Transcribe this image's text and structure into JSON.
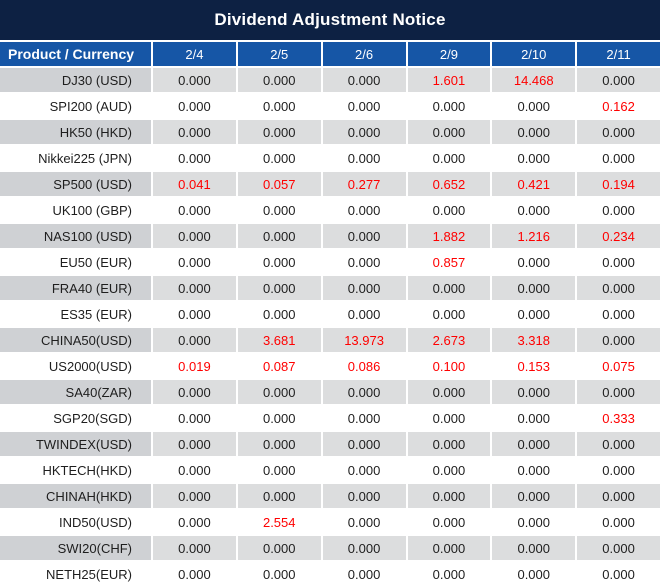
{
  "title": "Dividend Adjustment Notice",
  "colors": {
    "title_bg": "#0d2143",
    "header_bg": "#1656a6",
    "header_text": "#ffffff",
    "row_gray_product": "#cfd1d4",
    "row_gray_cell": "#dcddde",
    "row_white": "#ffffff",
    "value_red": "#ff0000",
    "text_dark": "#1e1e1e"
  },
  "table": {
    "product_header": "Product / Currency",
    "date_headers": [
      "2/4",
      "2/5",
      "2/6",
      "2/9",
      "2/10",
      "2/11"
    ],
    "rows": [
      {
        "product": "DJ30 (USD)",
        "values": [
          "0.000",
          "0.000",
          "0.000",
          "1.601",
          "14.468",
          "0.000"
        ],
        "red": [
          false,
          false,
          false,
          true,
          true,
          false
        ]
      },
      {
        "product": "SPI200 (AUD)",
        "values": [
          "0.000",
          "0.000",
          "0.000",
          "0.000",
          "0.000",
          "0.162"
        ],
        "red": [
          false,
          false,
          false,
          false,
          false,
          true
        ]
      },
      {
        "product": "HK50 (HKD)",
        "values": [
          "0.000",
          "0.000",
          "0.000",
          "0.000",
          "0.000",
          "0.000"
        ],
        "red": [
          false,
          false,
          false,
          false,
          false,
          false
        ]
      },
      {
        "product": "Nikkei225 (JPN)",
        "values": [
          "0.000",
          "0.000",
          "0.000",
          "0.000",
          "0.000",
          "0.000"
        ],
        "red": [
          false,
          false,
          false,
          false,
          false,
          false
        ]
      },
      {
        "product": "SP500 (USD)",
        "values": [
          "0.041",
          "0.057",
          "0.277",
          "0.652",
          "0.421",
          "0.194"
        ],
        "red": [
          true,
          true,
          true,
          true,
          true,
          true
        ]
      },
      {
        "product": "UK100 (GBP)",
        "values": [
          "0.000",
          "0.000",
          "0.000",
          "0.000",
          "0.000",
          "0.000"
        ],
        "red": [
          false,
          false,
          false,
          false,
          false,
          false
        ]
      },
      {
        "product": "NAS100 (USD)",
        "values": [
          "0.000",
          "0.000",
          "0.000",
          "1.882",
          "1.216",
          "0.234"
        ],
        "red": [
          false,
          false,
          false,
          true,
          true,
          true
        ]
      },
      {
        "product": "EU50 (EUR)",
        "values": [
          "0.000",
          "0.000",
          "0.000",
          "0.857",
          "0.000",
          "0.000"
        ],
        "red": [
          false,
          false,
          false,
          true,
          false,
          false
        ]
      },
      {
        "product": "FRA40 (EUR)",
        "values": [
          "0.000",
          "0.000",
          "0.000",
          "0.000",
          "0.000",
          "0.000"
        ],
        "red": [
          false,
          false,
          false,
          false,
          false,
          false
        ]
      },
      {
        "product": "ES35 (EUR)",
        "values": [
          "0.000",
          "0.000",
          "0.000",
          "0.000",
          "0.000",
          "0.000"
        ],
        "red": [
          false,
          false,
          false,
          false,
          false,
          false
        ]
      },
      {
        "product": "CHINA50(USD)",
        "values": [
          "0.000",
          "3.681",
          "13.973",
          "2.673",
          "3.318",
          "0.000"
        ],
        "red": [
          false,
          true,
          true,
          true,
          true,
          false
        ]
      },
      {
        "product": "US2000(USD)",
        "values": [
          "0.019",
          "0.087",
          "0.086",
          "0.100",
          "0.153",
          "0.075"
        ],
        "red": [
          true,
          true,
          true,
          true,
          true,
          true
        ]
      },
      {
        "product": "SA40(ZAR)",
        "values": [
          "0.000",
          "0.000",
          "0.000",
          "0.000",
          "0.000",
          "0.000"
        ],
        "red": [
          false,
          false,
          false,
          false,
          false,
          false
        ]
      },
      {
        "product": "SGP20(SGD)",
        "values": [
          "0.000",
          "0.000",
          "0.000",
          "0.000",
          "0.000",
          "0.333"
        ],
        "red": [
          false,
          false,
          false,
          false,
          false,
          true
        ]
      },
      {
        "product": "TWINDEX(USD)",
        "values": [
          "0.000",
          "0.000",
          "0.000",
          "0.000",
          "0.000",
          "0.000"
        ],
        "red": [
          false,
          false,
          false,
          false,
          false,
          false
        ]
      },
      {
        "product": "HKTECH(HKD)",
        "values": [
          "0.000",
          "0.000",
          "0.000",
          "0.000",
          "0.000",
          "0.000"
        ],
        "red": [
          false,
          false,
          false,
          false,
          false,
          false
        ]
      },
      {
        "product": "CHINAH(HKD)",
        "values": [
          "0.000",
          "0.000",
          "0.000",
          "0.000",
          "0.000",
          "0.000"
        ],
        "red": [
          false,
          false,
          false,
          false,
          false,
          false
        ]
      },
      {
        "product": "IND50(USD)",
        "values": [
          "0.000",
          "2.554",
          "0.000",
          "0.000",
          "0.000",
          "0.000"
        ],
        "red": [
          false,
          true,
          false,
          false,
          false,
          false
        ]
      },
      {
        "product": "SWI20(CHF)",
        "values": [
          "0.000",
          "0.000",
          "0.000",
          "0.000",
          "0.000",
          "0.000"
        ],
        "red": [
          false,
          false,
          false,
          false,
          false,
          false
        ]
      },
      {
        "product": "NETH25(EUR)",
        "values": [
          "0.000",
          "0.000",
          "0.000",
          "0.000",
          "0.000",
          "0.000"
        ],
        "red": [
          false,
          false,
          false,
          false,
          false,
          false
        ]
      }
    ]
  }
}
